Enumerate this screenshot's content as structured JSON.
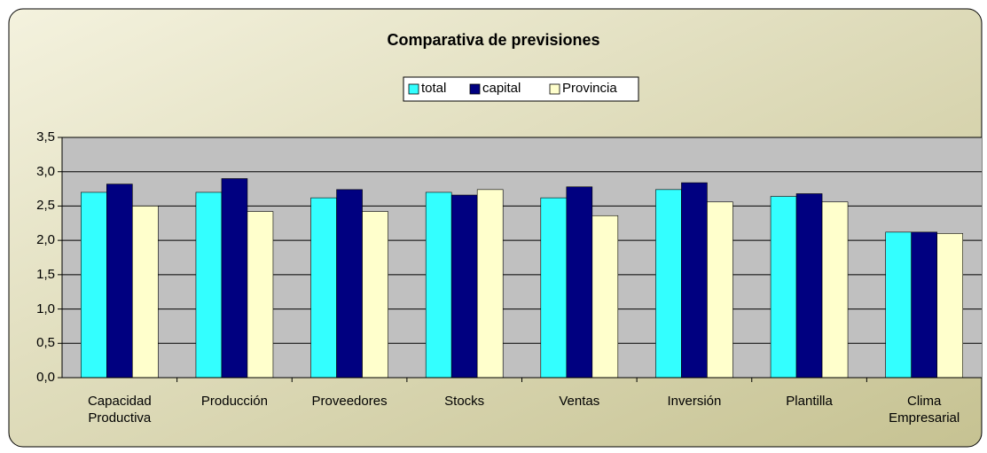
{
  "chart_data": {
    "type": "bar",
    "title": "Comparativa de previsiones",
    "categories": [
      "Capacidad Productiva",
      "Producción",
      "Proveedores",
      "Stocks",
      "Ventas",
      "Inversión",
      "Plantilla",
      "Clima Empresarial"
    ],
    "series": [
      {
        "name": "total",
        "color": "#33ffff",
        "values": [
          2.7,
          2.7,
          2.62,
          2.7,
          2.62,
          2.74,
          2.64,
          2.12
        ]
      },
      {
        "name": "capital",
        "color": "#000080",
        "values": [
          2.82,
          2.9,
          2.74,
          2.66,
          2.78,
          2.84,
          2.68,
          2.12
        ]
      },
      {
        "name": "Provincia",
        "color": "#ffffcc",
        "values": [
          2.5,
          2.42,
          2.42,
          2.74,
          2.36,
          2.56,
          2.56,
          2.1
        ]
      }
    ],
    "ylim": [
      0,
      3.5
    ],
    "yticks": [
      {
        "value": 0,
        "label": "0,0"
      },
      {
        "value": 0.5,
        "label": "0,5"
      },
      {
        "value": 1,
        "label": "1,0"
      },
      {
        "value": 1.5,
        "label": "1,5"
      },
      {
        "value": 2,
        "label": "2,0"
      },
      {
        "value": 2.5,
        "label": "2,5"
      },
      {
        "value": 3,
        "label": "3,0"
      },
      {
        "value": 3.5,
        "label": "3,5"
      }
    ],
    "grid": true,
    "legend": "top"
  }
}
